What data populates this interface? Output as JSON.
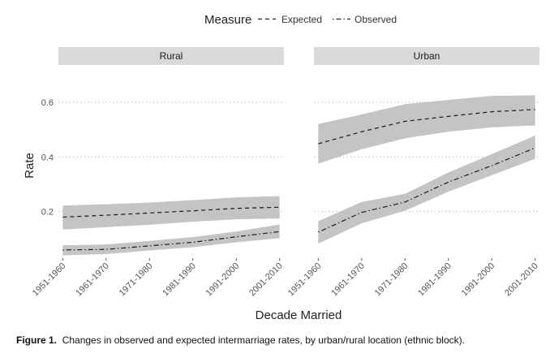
{
  "chart_data": {
    "type": "line",
    "legend": {
      "title": "Measure",
      "placement": "top",
      "items": [
        {
          "label": "Expected",
          "linetype": "dashed"
        },
        {
          "label": "Observed",
          "linetype": "dotdash"
        }
      ]
    },
    "categories": [
      "1951-1960",
      "1961-1970",
      "1971-1980",
      "1981-1990",
      "1991-2000",
      "2001-2010"
    ],
    "xlabel": "Decade Married",
    "ylabel": "Rate",
    "ylim": [
      0.03,
      0.73
    ],
    "yticks": [
      0.2,
      0.4,
      0.6
    ],
    "ytick_labels": [
      "0.2",
      "0.4",
      "0.6"
    ],
    "grid": "horizontal dotted",
    "band_color": "#c4c4c4",
    "panel_strip_color": "#d9d9d9",
    "panels": [
      {
        "label": "Rural",
        "series": [
          {
            "name": "Expected",
            "values": [
              0.18,
              0.187,
              0.195,
              0.203,
              0.212,
              0.216
            ],
            "lower": [
              0.135,
              0.143,
              0.152,
              0.163,
              0.172,
              0.175
            ],
            "upper": [
              0.222,
              0.227,
              0.233,
              0.242,
              0.252,
              0.257
            ]
          },
          {
            "name": "Observed",
            "values": [
              0.06,
              0.062,
              0.075,
              0.088,
              0.108,
              0.127
            ],
            "lower": [
              0.04,
              0.045,
              0.058,
              0.07,
              0.088,
              0.103
            ],
            "upper": [
              0.077,
              0.08,
              0.093,
              0.107,
              0.127,
              0.153
            ]
          }
        ]
      },
      {
        "label": "Urban",
        "series": [
          {
            "name": "Expected",
            "values": [
              0.448,
              0.492,
              0.53,
              0.548,
              0.565,
              0.573
            ],
            "lower": [
              0.375,
              0.428,
              0.468,
              0.492,
              0.508,
              0.515
            ],
            "upper": [
              0.52,
              0.555,
              0.593,
              0.608,
              0.623,
              0.625
            ]
          },
          {
            "name": "Observed",
            "values": [
              0.125,
              0.197,
              0.235,
              0.308,
              0.368,
              0.433
            ],
            "lower": [
              0.083,
              0.157,
              0.203,
              0.273,
              0.333,
              0.393
            ],
            "upper": [
              0.165,
              0.235,
              0.265,
              0.343,
              0.41,
              0.478
            ]
          }
        ]
      }
    ]
  },
  "caption": {
    "label": "Figure 1.",
    "text": "Changes in observed and expected intermarriage rates, by urban/rural location (ethnic block)."
  }
}
